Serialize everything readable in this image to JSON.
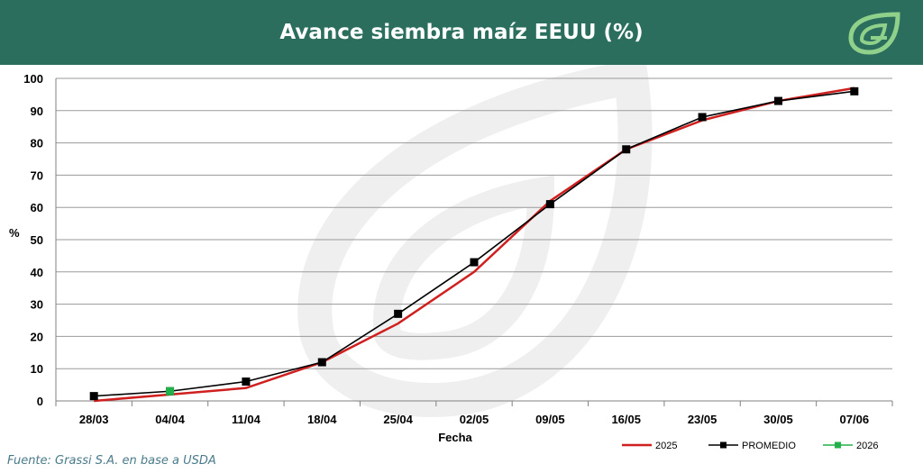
{
  "header": {
    "title": "Avance siembra maíz EEUU (%)"
  },
  "logo": {
    "icon": "grassi-leaf-logo-icon",
    "color": "#8fd08a"
  },
  "footer": {
    "source": "Fuente: Grassi S.A. en base a USDA"
  },
  "colors": {
    "header_bg": "#2b6e5d",
    "series_2025": "#d01f1f",
    "series_promedio": "#000000",
    "series_2026": "#22b04b",
    "grid": "#9a9a9a",
    "watermark": "#efefef"
  },
  "chart_data": {
    "type": "line",
    "title": "Avance siembra maíz EEUU (%)",
    "xlabel": "Fecha",
    "ylabel": "%",
    "categories": [
      "28/03",
      "04/04",
      "11/04",
      "18/04",
      "25/04",
      "02/05",
      "09/05",
      "16/05",
      "23/05",
      "30/05",
      "07/06"
    ],
    "ylim": [
      0,
      100
    ],
    "yticks": [
      0,
      10,
      20,
      30,
      40,
      50,
      60,
      70,
      80,
      90,
      100
    ],
    "grid": true,
    "legend_position": "bottom-right",
    "series": [
      {
        "name": "2025",
        "color": "#d01f1f",
        "marker": "none",
        "values": [
          0,
          2,
          4,
          12,
          24,
          40,
          62,
          78,
          87,
          93,
          97
        ]
      },
      {
        "name": "PROMEDIO",
        "color": "#000000",
        "marker": "square",
        "values": [
          1.5,
          3,
          6,
          12,
          27,
          43,
          61,
          78,
          88,
          93,
          96
        ]
      },
      {
        "name": "2026",
        "color": "#22b04b",
        "marker": "square",
        "values": [
          null,
          3,
          null,
          null,
          null,
          null,
          null,
          null,
          null,
          null,
          null
        ]
      }
    ]
  }
}
